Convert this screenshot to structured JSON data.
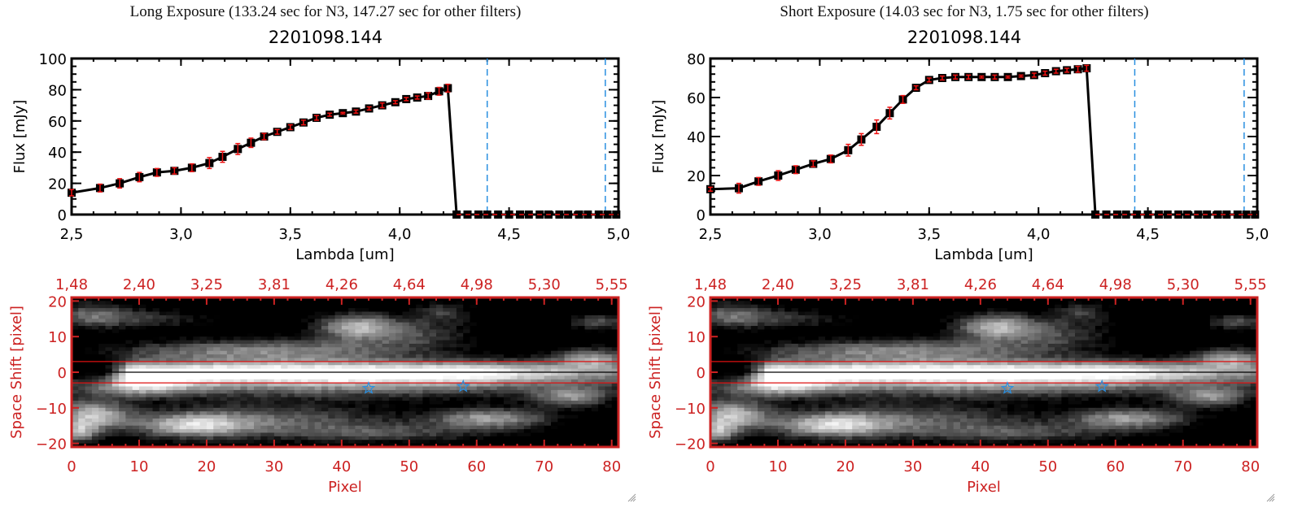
{
  "chart_data": [
    {
      "type": "line",
      "panel_title": "Long Exposure (133.24 sec for N3, 147.27 sec for other filters)",
      "title": "2201098.144",
      "xlabel": "Lambda [um]",
      "ylabel": "Flux [mJy]",
      "xlim": [
        2.5,
        5.0
      ],
      "ylim": [
        0,
        100
      ],
      "xticks": [
        "2.5",
        "3.0",
        "3.5",
        "4.0",
        "4.5",
        "5.0"
      ],
      "yticks": [
        "0",
        "20",
        "40",
        "60",
        "80",
        "100"
      ],
      "reference_lines_x": [
        4.4,
        4.94
      ],
      "zero_line": 0,
      "series": [
        {
          "name": "flux",
          "x": [
            2.5,
            2.63,
            2.72,
            2.81,
            2.89,
            2.97,
            3.05,
            3.13,
            3.19,
            3.26,
            3.32,
            3.38,
            3.44,
            3.5,
            3.56,
            3.62,
            3.68,
            3.74,
            3.8,
            3.86,
            3.92,
            3.98,
            4.03,
            4.08,
            4.13,
            4.18,
            4.22,
            4.26,
            4.31,
            4.36,
            4.4,
            4.45,
            4.5,
            4.55,
            4.59,
            4.64,
            4.68,
            4.73,
            4.77,
            4.82,
            4.86,
            4.91,
            4.95,
            4.99
          ],
          "y": [
            14,
            17,
            20,
            24,
            27,
            28,
            30,
            33,
            37,
            42,
            46,
            50,
            53,
            56,
            59,
            62,
            64,
            65,
            66,
            68,
            70,
            72,
            74,
            75,
            76,
            79,
            81,
            0,
            0,
            0,
            0,
            0,
            0,
            0,
            0,
            0,
            0,
            0,
            0,
            0,
            0,
            0,
            0,
            0
          ],
          "err": [
            2,
            2.5,
            3,
            3,
            2.5,
            2,
            2.5,
            3.5,
            3.5,
            3.5,
            3,
            2,
            1.5,
            1.5,
            1.5,
            1.5,
            1,
            0.5,
            1,
            1,
            1.5,
            1,
            1,
            1,
            2,
            2.5,
            2.5,
            0,
            0,
            0,
            0,
            0,
            0,
            0,
            0,
            0,
            0,
            0,
            0,
            0,
            0,
            0,
            0,
            0
          ]
        }
      ]
    },
    {
      "type": "line",
      "panel_title": "Short Exposure (14.03 sec for N3, 1.75 sec for other filters)",
      "title": "2201098.144",
      "xlabel": "Lambda [um]",
      "ylabel": "Flux [mJy]",
      "xlim": [
        2.5,
        5.0
      ],
      "ylim": [
        0,
        80
      ],
      "xticks": [
        "2.5",
        "3.0",
        "3.5",
        "4.0",
        "4.5",
        "5.0"
      ],
      "yticks": [
        "0",
        "20",
        "40",
        "60",
        "80"
      ],
      "reference_lines_x": [
        4.44,
        4.94
      ],
      "zero_line": 0,
      "series": [
        {
          "name": "flux",
          "x": [
            2.5,
            2.63,
            2.72,
            2.81,
            2.89,
            2.97,
            3.05,
            3.13,
            3.19,
            3.26,
            3.32,
            3.38,
            3.44,
            3.5,
            3.56,
            3.62,
            3.68,
            3.74,
            3.8,
            3.86,
            3.92,
            3.98,
            4.03,
            4.08,
            4.13,
            4.18,
            4.22,
            4.26,
            4.31,
            4.36,
            4.4,
            4.45,
            4.5,
            4.55,
            4.59,
            4.64,
            4.68,
            4.73,
            4.77,
            4.82,
            4.86,
            4.91,
            4.95,
            4.99
          ],
          "y": [
            13,
            13.5,
            17,
            20,
            23,
            26,
            28.5,
            33,
            38.5,
            45,
            52,
            59,
            65,
            69,
            70,
            70.5,
            70.5,
            70.5,
            70.5,
            70.5,
            71,
            71.5,
            72.5,
            73.5,
            74,
            74.5,
            75,
            0,
            0,
            0,
            0,
            0,
            0,
            0,
            0,
            0,
            0,
            0,
            0,
            0,
            0,
            0,
            0,
            0
          ],
          "err": [
            1,
            2.5,
            2,
            2.5,
            2,
            1.5,
            2,
            3,
            3,
            3.5,
            3,
            2,
            1,
            1,
            1,
            1,
            1,
            0.5,
            1,
            0.5,
            0.5,
            1,
            1,
            1,
            1,
            1.5,
            1.5,
            0,
            0,
            0,
            0,
            0,
            0,
            0,
            0,
            0,
            0,
            0,
            0,
            0,
            0,
            0,
            0,
            0
          ]
        }
      ]
    },
    {
      "type": "heatmap",
      "xlabel": "Pixel",
      "ylabel": "Space Shift [pixel]",
      "xlim": [
        0,
        81
      ],
      "ylim": [
        -21,
        21
      ],
      "xticks": [
        "0",
        "10",
        "20",
        "30",
        "40",
        "50",
        "60",
        "70",
        "80"
      ],
      "yticks": [
        "-20",
        "-10",
        "0",
        "10",
        "20"
      ],
      "top_xticks": [
        "1.48",
        "2.40",
        "3.25",
        "3.81",
        "4.26",
        "4.64",
        "4.98",
        "5.30",
        "5.55"
      ],
      "aperture_lines_y": [
        3,
        -3
      ],
      "center_line_y": 0,
      "star_markers": [
        {
          "x": 44,
          "y": -4.5
        },
        {
          "x": 58,
          "y": -4
        }
      ],
      "colormap": "grayscale"
    },
    {
      "type": "heatmap",
      "xlabel": "Pixel",
      "ylabel": "Space Shift [pixel]",
      "xlim": [
        0,
        81
      ],
      "ylim": [
        -21,
        21
      ],
      "xticks": [
        "0",
        "10",
        "20",
        "30",
        "40",
        "50",
        "60",
        "70",
        "80"
      ],
      "yticks": [
        "-20",
        "-10",
        "0",
        "10",
        "20"
      ],
      "top_xticks": [
        "1.48",
        "2.40",
        "3.25",
        "3.81",
        "4.26",
        "4.64",
        "4.98",
        "5.30",
        "5.55"
      ],
      "aperture_lines_y": [
        3,
        -3
      ],
      "center_line_y": 0,
      "star_markers": [
        {
          "x": 44,
          "y": -4.5
        },
        {
          "x": 58,
          "y": -4
        }
      ],
      "colormap": "grayscale"
    }
  ],
  "colors": {
    "axis_black": "#000000",
    "errorbar": "#ee1111",
    "reference_line": "#2a8fe0",
    "image_axis": "#cc2222",
    "aperture": "#dd1111",
    "star": "#2a8fe0"
  }
}
